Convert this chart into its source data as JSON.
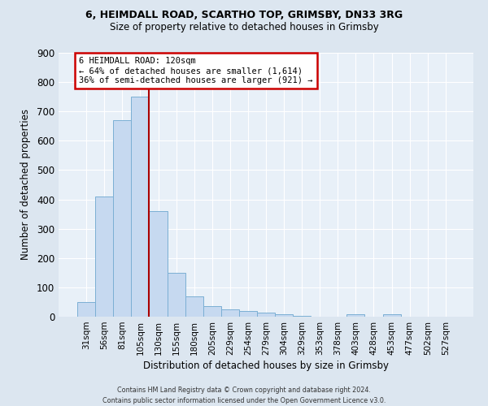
{
  "title_line1": "6, HEIMDALL ROAD, SCARTHO TOP, GRIMSBY, DN33 3RG",
  "title_line2": "Size of property relative to detached houses in Grimsby",
  "xlabel": "Distribution of detached houses by size in Grimsby",
  "ylabel": "Number of detached properties",
  "bar_labels": [
    "31sqm",
    "56sqm",
    "81sqm",
    "105sqm",
    "130sqm",
    "155sqm",
    "180sqm",
    "205sqm",
    "229sqm",
    "254sqm",
    "279sqm",
    "304sqm",
    "329sqm",
    "353sqm",
    "378sqm",
    "403sqm",
    "428sqm",
    "453sqm",
    "477sqm",
    "502sqm",
    "527sqm"
  ],
  "bar_values": [
    50,
    410,
    670,
    750,
    360,
    150,
    70,
    35,
    25,
    20,
    15,
    8,
    2,
    0,
    0,
    8,
    0,
    8,
    0,
    0,
    0
  ],
  "bar_color": "#c6d9f0",
  "bar_edge_color": "#7bafd4",
  "vline_color": "#aa0000",
  "annotation_text": "6 HEIMDALL ROAD: 120sqm\n← 64% of detached houses are smaller (1,614)\n36% of semi-detached houses are larger (921) →",
  "annotation_box_color": "#ffffff",
  "annotation_box_edge_color": "#cc0000",
  "ylim": [
    0,
    900
  ],
  "yticks": [
    0,
    100,
    200,
    300,
    400,
    500,
    600,
    700,
    800,
    900
  ],
  "footer_text": "Contains HM Land Registry data © Crown copyright and database right 2024.\nContains public sector information licensed under the Open Government Licence v3.0.",
  "bg_color": "#dce6f0",
  "plot_bg_color": "#e8f0f8",
  "grid_color": "#ffffff",
  "title_fontsize": 9,
  "subtitle_fontsize": 8.5,
  "ylabel_fontsize": 8.5,
  "xlabel_fontsize": 8.5
}
